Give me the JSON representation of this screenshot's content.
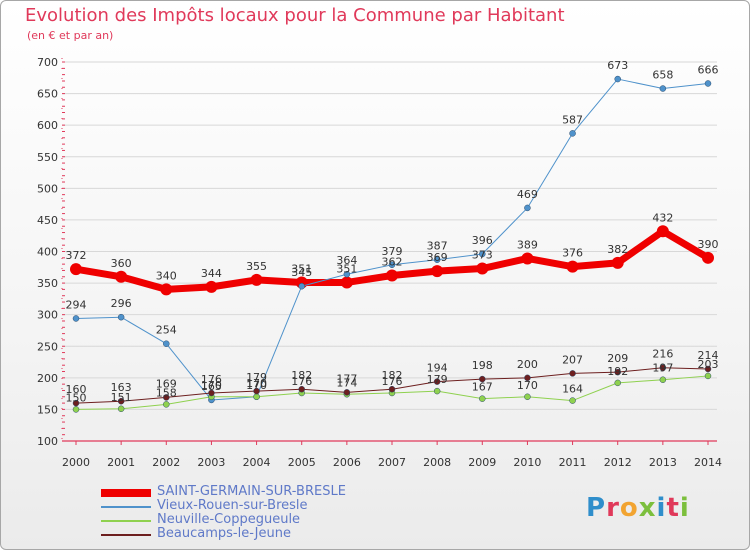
{
  "title": "Evolution des Impôts locaux pour la Commune par Habitant",
  "subtitle": "(en € et par an)",
  "brand": {
    "text": "Proxiti",
    "colors": [
      "#2f8ecb",
      "#e0395a",
      "#f2a431",
      "#7cbf3d",
      "#2f8ecb",
      "#e0395a",
      "#7cbf3d"
    ]
  },
  "colors": {
    "title": "#e0395a",
    "axis": "#e0395a",
    "grid": "#d8d8d8",
    "legend_text": "#5f79c8"
  },
  "chart_data": {
    "type": "line",
    "x": [
      "2000",
      "2001",
      "2002",
      "2003",
      "2004",
      "2005",
      "2006",
      "2007",
      "2008",
      "2009",
      "2010",
      "2011",
      "2012",
      "2013",
      "2014"
    ],
    "ylim": [
      100,
      700
    ],
    "yticks": [
      100,
      150,
      200,
      250,
      300,
      350,
      400,
      450,
      500,
      550,
      600,
      650,
      700
    ],
    "grid": true,
    "legend_position": "bottom-left",
    "series": [
      {
        "name": "SAINT-GERMAIN-SUR-BRESLE",
        "color": "#ef0000",
        "width": 7,
        "values": [
          372,
          360,
          340,
          344,
          355,
          351,
          351,
          362,
          369,
          373,
          389,
          376,
          382,
          432,
          390
        ],
        "labels": [
          "372",
          "360",
          "340",
          "344",
          "355",
          "351",
          "351",
          "362",
          "369",
          "373",
          "389",
          "376",
          "382",
          "432",
          "390"
        ]
      },
      {
        "name": "Vieux-Rouen-sur-Bresle",
        "color": "#4f92cb",
        "width": 1,
        "values": [
          294,
          296,
          254,
          165,
          170,
          345,
          364,
          379,
          387,
          396,
          469,
          587,
          673,
          658,
          666
        ],
        "labels": [
          "294",
          "296",
          "254",
          "165",
          "170",
          "345",
          "364",
          "379",
          "387",
          "396",
          "469",
          "587",
          "673",
          "658",
          "666"
        ]
      },
      {
        "name": "Neuville-Coppegueule",
        "color": "#8fd14f",
        "width": 1,
        "values": [
          150,
          151,
          158,
          170,
          170,
          176,
          174,
          176,
          179,
          167,
          170,
          164,
          192,
          197,
          203
        ],
        "labels": [
          "150",
          "151",
          "158",
          "170",
          "170",
          "176",
          "174",
          "176",
          "179",
          "167",
          "170",
          "164",
          "192",
          "197",
          "203"
        ]
      },
      {
        "name": "Beaucamps-le-Jeune",
        "color": "#6d1f1f",
        "width": 1,
        "values": [
          160,
          163,
          169,
          176,
          179,
          182,
          177,
          182,
          194,
          198,
          200,
          207,
          209,
          216,
          214
        ],
        "labels": [
          "160",
          "163",
          "169",
          "176",
          "179",
          "182",
          "177",
          "182",
          "194",
          "198",
          "200",
          "207",
          "209",
          "216",
          "214"
        ]
      }
    ]
  }
}
